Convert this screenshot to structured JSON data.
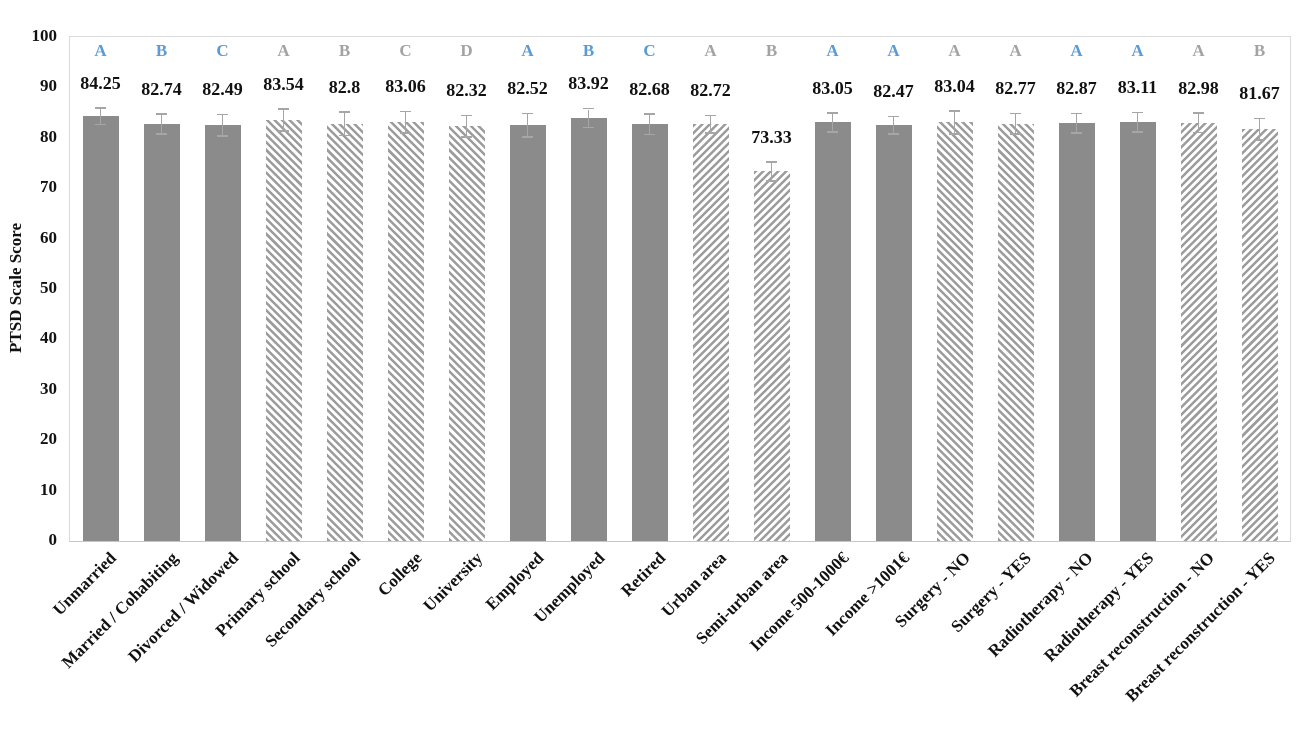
{
  "chart_data": {
    "type": "bar",
    "title": "",
    "xlabel": "",
    "ylabel": "PTSD Scale Score",
    "ylim": [
      0,
      100
    ],
    "yticks": [
      0,
      10,
      20,
      30,
      40,
      50,
      60,
      70,
      80,
      90,
      100
    ],
    "grid": false,
    "legend_position": "none",
    "bar_fill_legend": {
      "solid": "solid gray bar",
      "hatch-back": "diagonal hatch \\ direction",
      "hatch-fwd": "diagonal hatch / direction"
    },
    "bars": [
      {
        "category": "Unmarried",
        "value": 84.25,
        "label": "84.25",
        "letter": "A",
        "letter_color": "blue",
        "fill": "solid",
        "error": 1.5
      },
      {
        "category": "Married / Cohabiting",
        "value": 82.74,
        "label": "82.74",
        "letter": "B",
        "letter_color": "blue",
        "fill": "solid",
        "error": 1.8
      },
      {
        "category": "Divorced / Widowed",
        "value": 82.49,
        "label": "82.49",
        "letter": "C",
        "letter_color": "blue",
        "fill": "solid",
        "error": 2.0
      },
      {
        "category": "Primary school",
        "value": 83.54,
        "label": "83.54",
        "letter": "A",
        "letter_color": "gray",
        "fill": "hatch-back",
        "error": 2.0
      },
      {
        "category": "Secondary school",
        "value": 82.8,
        "label": "82.8",
        "letter": "B",
        "letter_color": "gray",
        "fill": "hatch-back",
        "error": 2.2
      },
      {
        "category": "College",
        "value": 83.06,
        "label": "83.06",
        "letter": "C",
        "letter_color": "gray",
        "fill": "hatch-back",
        "error": 2.0
      },
      {
        "category": "University",
        "value": 82.32,
        "label": "82.32",
        "letter": "D",
        "letter_color": "gray",
        "fill": "hatch-back",
        "error": 2.0
      },
      {
        "category": "Employed",
        "value": 82.52,
        "label": "82.52",
        "letter": "A",
        "letter_color": "blue",
        "fill": "solid",
        "error": 2.2
      },
      {
        "category": "Unemployed",
        "value": 83.92,
        "label": "83.92",
        "letter": "B",
        "letter_color": "blue",
        "fill": "solid",
        "error": 1.7
      },
      {
        "category": "Retired",
        "value": 82.68,
        "label": "82.68",
        "letter": "C",
        "letter_color": "blue",
        "fill": "solid",
        "error": 1.9
      },
      {
        "category": "Urban area",
        "value": 82.72,
        "label": "82.72",
        "letter": "A",
        "letter_color": "gray",
        "fill": "hatch-fwd",
        "error": 1.6
      },
      {
        "category": "Semi-urban area",
        "value": 73.33,
        "label": "73.33",
        "letter": "B",
        "letter_color": "gray",
        "fill": "hatch-fwd",
        "error": 1.7
      },
      {
        "category": "Income 500-1000€",
        "value": 83.05,
        "label": "83.05",
        "letter": "A",
        "letter_color": "blue",
        "fill": "solid",
        "error": 1.7
      },
      {
        "category": "Income >1001€",
        "value": 82.47,
        "label": "82.47",
        "letter": "A",
        "letter_color": "blue",
        "fill": "solid",
        "error": 1.6
      },
      {
        "category": "Surgery - NO",
        "value": 83.04,
        "label": "83.04",
        "letter": "A",
        "letter_color": "gray",
        "fill": "hatch-back",
        "error": 2.1
      },
      {
        "category": "Surgery - YES",
        "value": 82.77,
        "label": "82.77",
        "letter": "A",
        "letter_color": "gray",
        "fill": "hatch-back",
        "error": 1.9
      },
      {
        "category": "Radiotherapy - NO",
        "value": 82.87,
        "label": "82.87",
        "letter": "A",
        "letter_color": "blue",
        "fill": "solid",
        "error": 1.8
      },
      {
        "category": "Radiotherapy - YES",
        "value": 83.11,
        "label": "83.11",
        "letter": "A",
        "letter_color": "blue",
        "fill": "solid",
        "error": 1.8
      },
      {
        "category": "Breast reconstruction - NO",
        "value": 82.98,
        "label": "82.98",
        "letter": "A",
        "letter_color": "gray",
        "fill": "hatch-fwd",
        "error": 1.8
      },
      {
        "category": "Breast reconstruction - YES",
        "value": 81.67,
        "label": "81.67",
        "letter": "B",
        "letter_color": "gray",
        "fill": "hatch-fwd",
        "error": 2.0
      }
    ],
    "colors": {
      "solid_bar": "#8b8b8b",
      "hatch_line": "#9c9c9c",
      "hatch_background": "#ffffff",
      "letter_blue": "#5b9bd5",
      "letter_gray": "#a3a3a3",
      "error_bar": "#a6a6a6",
      "plot_border": "#d9d9d9",
      "text": "#111111"
    }
  }
}
